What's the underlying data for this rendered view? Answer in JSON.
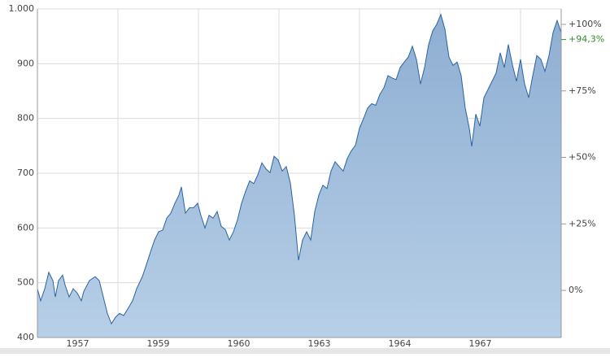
{
  "chart_data": {
    "type": "area",
    "x": [
      0,
      4,
      9,
      14,
      19,
      22,
      26,
      31,
      34,
      39,
      44,
      49,
      54,
      57,
      64,
      71,
      76,
      81,
      86,
      91,
      96,
      101,
      106,
      111,
      117,
      122,
      129,
      134,
      139,
      144,
      149,
      154,
      159,
      164,
      169,
      174,
      177,
      182,
      187,
      192,
      197,
      201,
      206,
      211,
      216,
      221,
      226,
      231,
      236,
      241,
      246,
      251,
      256,
      261,
      266,
      271,
      276,
      281,
      286,
      291,
      296,
      301,
      306,
      311,
      316,
      321,
      326,
      331,
      336,
      341,
      346,
      351,
      356,
      361,
      366,
      371,
      376,
      381,
      386,
      391,
      396,
      401,
      406,
      411,
      416,
      421,
      426,
      431,
      436,
      441,
      446,
      451,
      456,
      461,
      466,
      471,
      476,
      481,
      486,
      491,
      496,
      501,
      506,
      511,
      516,
      521,
      526,
      531,
      534,
      539,
      544,
      549,
      554,
      559,
      564,
      569,
      574,
      579,
      584,
      589,
      594,
      599,
      604,
      609,
      614,
      619,
      624,
      629,
      634,
      639,
      644
    ],
    "series": [
      {
        "color": "#2b63a3",
        "fill": "#a7c2df",
        "values": [
          489,
          467,
          489,
          519,
          504,
          474,
          504,
          514,
          496,
          474,
          489,
          481,
          467,
          484,
          504,
          511,
          504,
          474,
          444,
          425,
          437,
          444,
          440,
          452,
          467,
          489,
          511,
          533,
          556,
          578,
          593,
          596,
          618,
          627,
          645,
          660,
          675,
          627,
          637,
          637,
          645,
          623,
          600,
          623,
          618,
          630,
          603,
          597,
          578,
          593,
          615,
          645,
          667,
          686,
          681,
          697,
          719,
          708,
          701,
          731,
          724,
          704,
          712,
          682,
          623,
          541,
          578,
          593,
          578,
          630,
          660,
          678,
          672,
          704,
          721,
          712,
          704,
          727,
          741,
          751,
          782,
          800,
          819,
          827,
          824,
          844,
          856,
          878,
          874,
          871,
          893,
          903,
          912,
          932,
          908,
          863,
          893,
          935,
          960,
          972,
          990,
          963,
          912,
          897,
          903,
          878,
          819,
          782,
          749,
          808,
          786,
          838,
          853,
          868,
          883,
          920,
          893,
          935,
          898,
          868,
          908,
          863,
          838,
          878,
          915,
          908,
          886,
          915,
          957,
          979,
          957
        ]
      }
    ],
    "xlim": [
      0,
      644
    ],
    "xticks": [
      {
        "value": 49.5,
        "label": "1957"
      },
      {
        "value": 148.5,
        "label": "1959"
      },
      {
        "value": 247.5,
        "label": "1960"
      },
      {
        "value": 346.5,
        "label": "1963"
      },
      {
        "value": 445.5,
        "label": "1964"
      },
      {
        "value": 544.5,
        "label": "1967"
      }
    ],
    "xgrid": [
      99,
      198,
      297,
      396,
      495,
      594
    ],
    "ylim": [
      400,
      1000
    ],
    "yticks": [
      400,
      500,
      600,
      700,
      800,
      900,
      {
        "value": 1000,
        "label": "1.000"
      }
    ],
    "y2lim": [
      -17.7,
      105.8
    ],
    "y2ticks": [
      {
        "value": 0,
        "label": "0%"
      },
      {
        "value": 25,
        "label": "+25%"
      },
      {
        "value": 50,
        "label": "+50%"
      },
      {
        "value": 75,
        "label": "+75%"
      },
      {
        "value": 100,
        "label": "+100%"
      }
    ],
    "annotation": {
      "value": 94.3,
      "label": "+94,3%",
      "color": "#2e8b2e"
    },
    "grid": true
  }
}
